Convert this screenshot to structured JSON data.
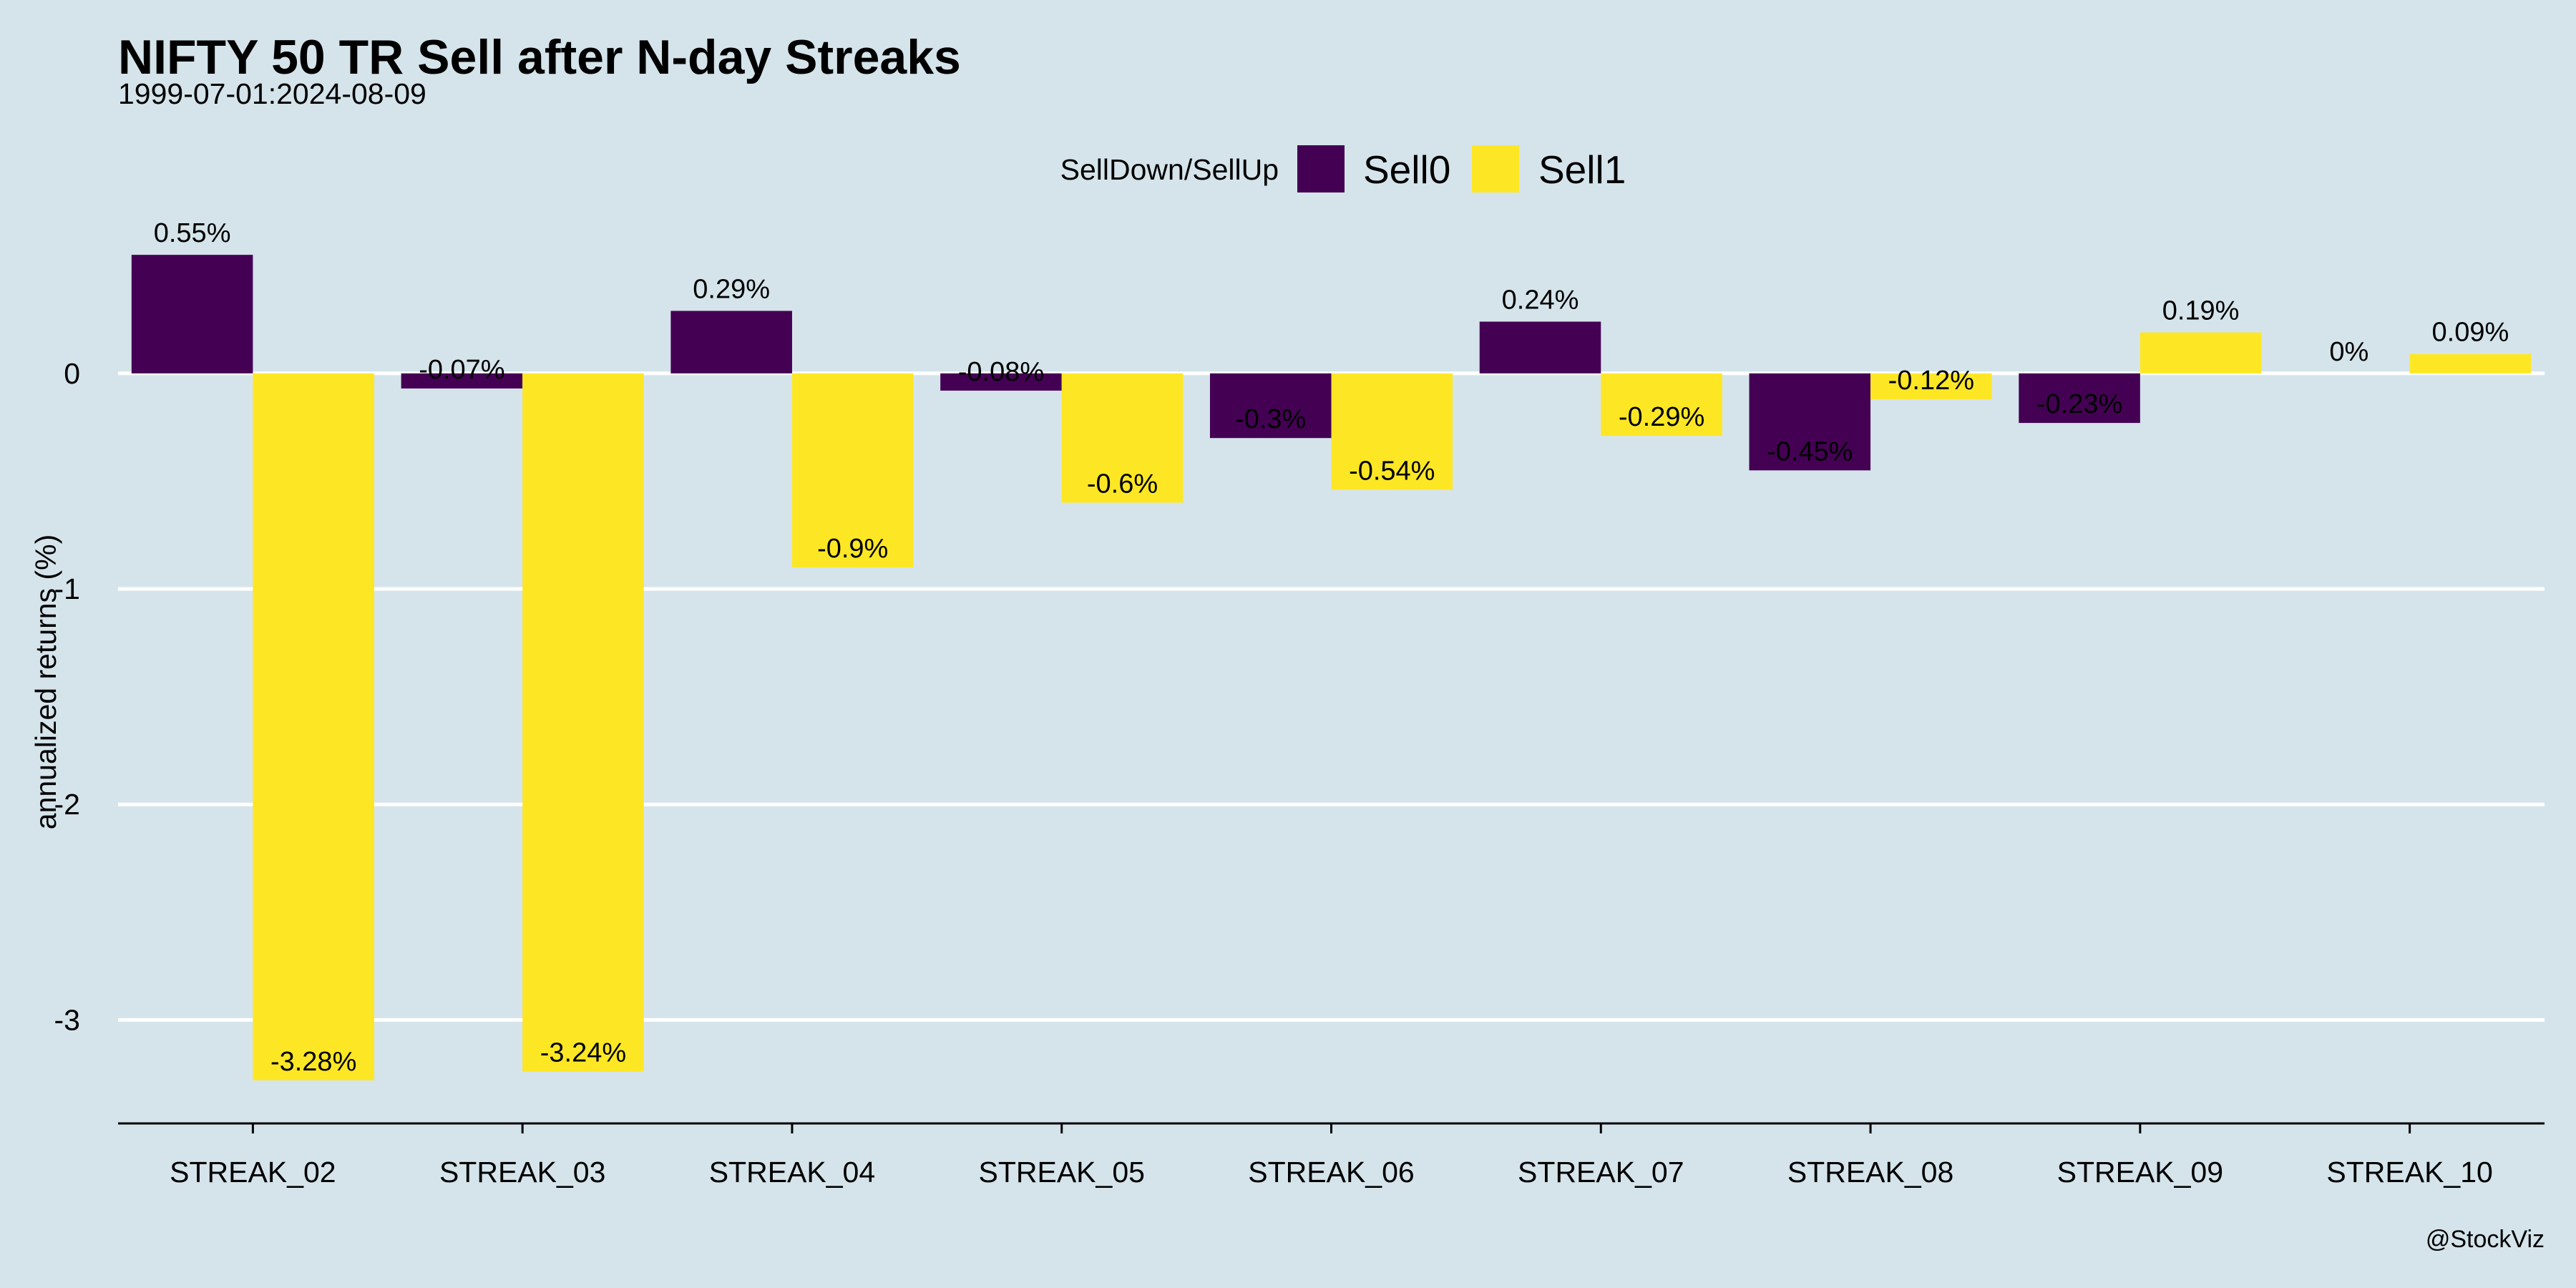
{
  "chart_data": {
    "type": "bar",
    "title": "NIFTY 50 TR Sell after N-day Streaks",
    "subtitle": "1999-07-01:2024-08-09",
    "ylabel": "annualized returns (%)",
    "xlabel": "",
    "caption": "@StockViz",
    "legend": {
      "title": "SellDown/SellUp",
      "position": "top"
    },
    "categories": [
      "STREAK_02",
      "STREAK_03",
      "STREAK_04",
      "STREAK_05",
      "STREAK_06",
      "STREAK_07",
      "STREAK_08",
      "STREAK_09",
      "STREAK_10"
    ],
    "series": [
      {
        "name": "Sell0",
        "color": "#440154",
        "values": [
          0.55,
          -0.07,
          0.29,
          -0.08,
          -0.3,
          0.24,
          -0.45,
          -0.23,
          0
        ],
        "labels": [
          "0.55%",
          "-0.07%",
          "0.29%",
          "-0.08%",
          "-0.3%",
          "0.24%",
          "-0.45%",
          "-0.23%",
          "0%"
        ]
      },
      {
        "name": "Sell1",
        "color": "#fde725",
        "values": [
          -3.28,
          -3.24,
          -0.9,
          -0.6,
          -0.54,
          -0.29,
          -0.12,
          0.19,
          0.09
        ],
        "labels": [
          "-3.28%",
          "-3.24%",
          "-0.9%",
          "-0.6%",
          "-0.54%",
          "-0.29%",
          "-0.12%",
          "0.19%",
          "0.09%"
        ]
      }
    ],
    "yticks": [
      0,
      -1,
      -2,
      -3
    ],
    "ytick_labels": [
      "0",
      "-1",
      "-2",
      "-3"
    ],
    "ylim": [
      -3.48,
      0.67
    ],
    "grid": "horizontal-major",
    "background": "#d5e4eb"
  }
}
